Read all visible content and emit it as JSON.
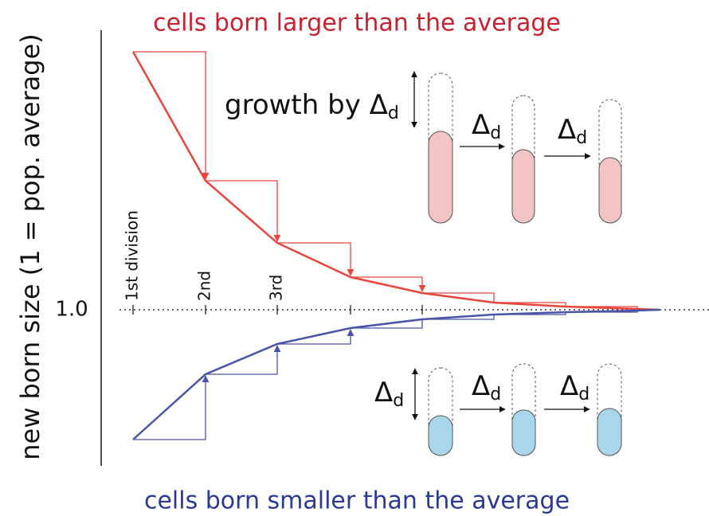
{
  "title_top": "cells born larger than the average",
  "title_bottom": "cells born smaller than the average",
  "y_axis_label": "new born size  (1 = pop. average)",
  "reference_label": "1.0",
  "division_labels": [
    "1st division",
    "2nd",
    "3rd"
  ],
  "growth_label": {
    "text": "growth by Δ",
    "sub": "d"
  },
  "delta_labels": [
    {
      "text": "Δ",
      "sub": "d"
    },
    {
      "text": "Δ",
      "sub": "d"
    },
    {
      "text": "Δ",
      "sub": "d"
    },
    {
      "text": "Δ",
      "sub": "d"
    },
    {
      "text": "Δ",
      "sub": "d"
    }
  ]
}
